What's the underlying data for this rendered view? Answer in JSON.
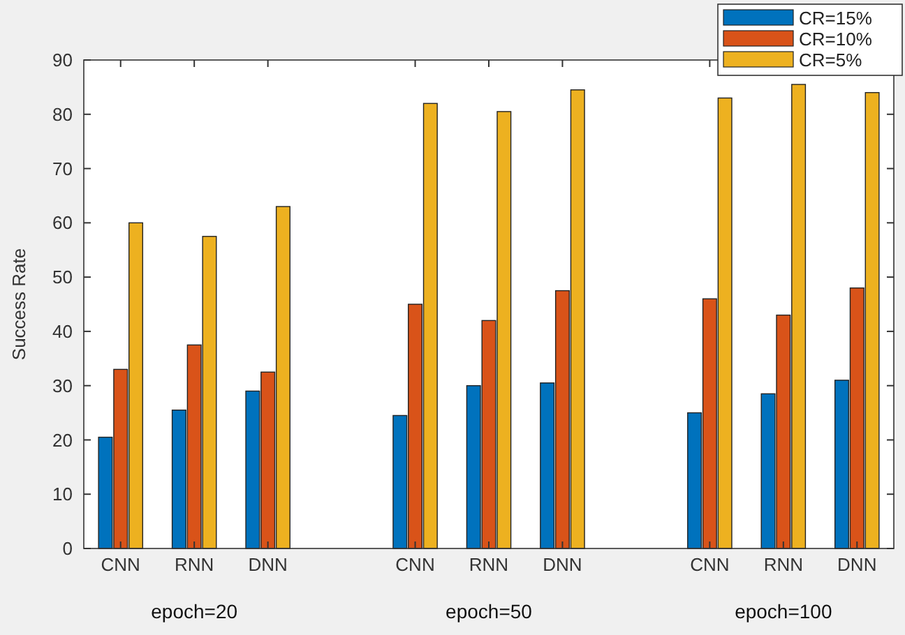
{
  "chart_data": {
    "type": "bar",
    "ylabel": "Success Rate",
    "categories": [
      "CNN",
      "RNN",
      "DNN",
      null,
      "CNN",
      "RNN",
      "DNN",
      null,
      "CNN",
      "RNN",
      "DNN"
    ],
    "series": [
      {
        "name": "CR=15%",
        "color": "#0072bd",
        "values": [
          20.5,
          25.5,
          29,
          null,
          24.5,
          30,
          30.5,
          null,
          25,
          28.5,
          31
        ]
      },
      {
        "name": "CR=10%",
        "color": "#d95319",
        "values": [
          33,
          37.5,
          32.5,
          null,
          45,
          42,
          47.5,
          null,
          46,
          43,
          48
        ]
      },
      {
        "name": "CR=5%",
        "color": "#edb120",
        "values": [
          60,
          57.5,
          63,
          null,
          82,
          80.5,
          84.5,
          null,
          83,
          85.5,
          84
        ]
      }
    ],
    "ylim": [
      0,
      90
    ],
    "yticks": [
      0,
      10,
      20,
      30,
      40,
      50,
      60,
      70,
      80,
      90
    ],
    "grid": false,
    "legend": "top right",
    "annotations": [
      "epoch=20",
      "epoch=50",
      "epoch=100"
    ]
  }
}
